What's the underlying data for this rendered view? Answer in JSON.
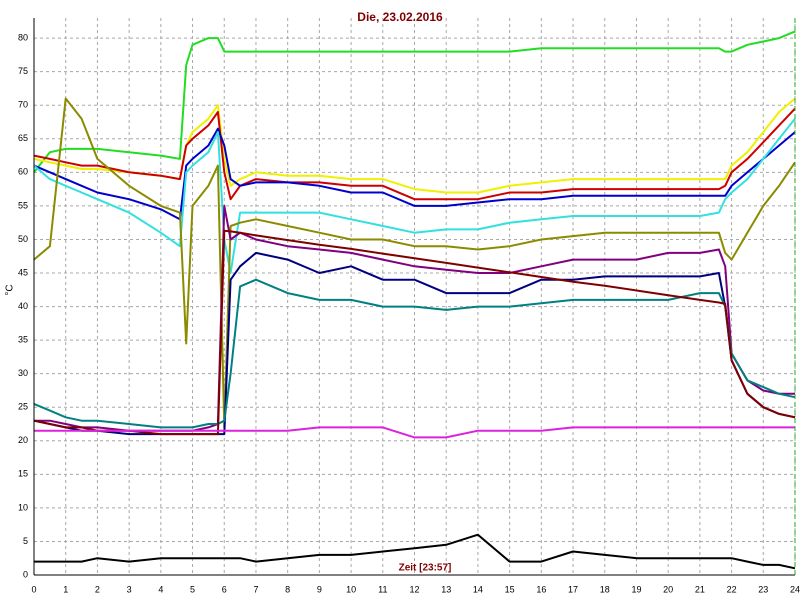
{
  "chart_data": {
    "type": "line",
    "title": "Die, 23.02.2016",
    "ylabel": "°C",
    "xlabel": "Zeit [23:57]",
    "x": [
      0,
      0.5,
      1,
      1.5,
      2,
      3,
      4,
      4.6,
      4.8,
      5,
      5.5,
      5.8,
      6,
      6.2,
      6.5,
      7,
      8,
      9,
      10,
      11,
      12,
      13,
      14,
      15,
      16,
      17,
      18,
      19,
      20,
      21,
      21.6,
      21.8,
      22,
      22.5,
      23,
      23.5,
      24
    ],
    "xlim": [
      0,
      24
    ],
    "xticks": [
      0,
      1,
      2,
      3,
      4,
      5,
      6,
      7,
      8,
      9,
      10,
      11,
      12,
      13,
      14,
      15,
      16,
      17,
      18,
      19,
      20,
      21,
      22,
      23,
      24
    ],
    "ylim": [
      0,
      83
    ],
    "yticks": [
      0,
      5,
      10,
      15,
      20,
      25,
      30,
      35,
      40,
      45,
      50,
      55,
      60,
      65,
      70,
      75,
      80
    ],
    "grid": true,
    "series": [
      {
        "color": "#22dd22",
        "values": [
          60,
          63,
          63.5,
          63.5,
          63.5,
          63,
          62.5,
          62,
          76,
          79,
          80,
          80,
          78,
          78,
          78,
          78,
          78,
          78,
          78,
          78,
          78,
          78,
          78,
          78,
          78.5,
          78.5,
          78.5,
          78.5,
          78.5,
          78.5,
          78.5,
          78,
          78,
          79,
          79.5,
          80,
          81
        ]
      },
      {
        "color": "#f0f000",
        "values": [
          62,
          61.5,
          61,
          60.5,
          60.5,
          60,
          59.5,
          59,
          64,
          66,
          68,
          70,
          62,
          58,
          59,
          60,
          59.5,
          59.5,
          59,
          59,
          57.5,
          57,
          57,
          58,
          58.5,
          59,
          59,
          59,
          59,
          59,
          59,
          59,
          61,
          63,
          66,
          69,
          71
        ]
      },
      {
        "color": "#cc0000",
        "values": [
          62.5,
          62,
          61.5,
          61,
          61,
          60,
          59.5,
          59,
          64,
          65,
          67,
          69,
          60,
          56,
          58,
          59,
          58.5,
          58.5,
          58,
          58,
          56,
          56,
          56,
          57,
          57,
          57.5,
          57.5,
          57.5,
          57.5,
          57.5,
          57.5,
          58,
          60,
          62,
          64.5,
          67,
          69.5
        ]
      },
      {
        "color": "#0000cc",
        "values": [
          61,
          60,
          59,
          58,
          57,
          56,
          54.5,
          53,
          61,
          62,
          64,
          66.5,
          64,
          59,
          58,
          58.5,
          58.5,
          58,
          57,
          57,
          55,
          55,
          55.5,
          56,
          56,
          56.5,
          56.5,
          56.5,
          56.5,
          56.5,
          56.5,
          56.5,
          58,
          60,
          62,
          64,
          66
        ]
      },
      {
        "color": "#33e0e0",
        "values": [
          61,
          59,
          58,
          57,
          56,
          54,
          51,
          49,
          60,
          61,
          63,
          66,
          50,
          45,
          54,
          54,
          54,
          54,
          53,
          52,
          51,
          51.5,
          51.5,
          52.5,
          53,
          53.5,
          53.5,
          53.5,
          53.5,
          53.5,
          54,
          56,
          57,
          59,
          62,
          65,
          68
        ]
      },
      {
        "color": "#8b8b00",
        "values": [
          47,
          49,
          71,
          68,
          62,
          58,
          55,
          54,
          34.5,
          55,
          58,
          61,
          22,
          52,
          52.5,
          53,
          52,
          51,
          50,
          50,
          49,
          49,
          48.5,
          49,
          50,
          50.5,
          51,
          51,
          51,
          51,
          51,
          48,
          47,
          51,
          55,
          58,
          61.5
        ]
      },
      {
        "color": "#800080",
        "values": [
          23,
          23,
          22.5,
          22,
          22,
          21.5,
          21.5,
          21.5,
          21.5,
          21.5,
          22,
          22.5,
          55,
          50,
          51,
          50,
          49,
          48.5,
          48,
          47,
          46,
          45.5,
          45,
          45,
          46,
          47,
          47,
          47,
          48,
          48,
          48.5,
          46,
          33,
          29,
          27.5,
          27,
          27
        ]
      },
      {
        "color": "#000080",
        "values": [
          23,
          22.5,
          22,
          21.5,
          21.5,
          21,
          21,
          21,
          21,
          21,
          21,
          21,
          21,
          44,
          46,
          48,
          47,
          45,
          46,
          44,
          44,
          42,
          42,
          42,
          44,
          44,
          44.5,
          44.5,
          44.5,
          44.5,
          45,
          40,
          32,
          27,
          25,
          24,
          23.5
        ]
      },
      {
        "color": "#008080",
        "values": [
          25.5,
          24.5,
          23.5,
          23,
          23,
          22.5,
          22,
          22,
          22,
          22,
          22.5,
          22.5,
          23,
          30,
          43,
          44,
          42,
          41,
          41,
          40,
          40,
          39.5,
          40,
          40,
          40.5,
          41,
          41,
          41,
          41,
          42,
          42,
          40,
          33,
          29,
          28,
          27,
          26.5
        ]
      },
      {
        "color": "#800000",
        "values": [
          23,
          22.5,
          22,
          22,
          21.5,
          21.5,
          21,
          21,
          21,
          21,
          21,
          21,
          51.3,
          51.2,
          51,
          50.6,
          49.9,
          49.2,
          48.6,
          47.9,
          47.2,
          46.5,
          45.8,
          45.1,
          44.4,
          43.7,
          43.1,
          42.4,
          41.7,
          41,
          40.6,
          40.4,
          32,
          27,
          25,
          24,
          23.5
        ]
      },
      {
        "color": "#dd22dd",
        "values": [
          21.5,
          21.5,
          21.5,
          21.5,
          21.5,
          21.5,
          21.5,
          21.5,
          21.5,
          21.5,
          21.5,
          21.5,
          21.5,
          21.5,
          21.5,
          21.5,
          21.5,
          22,
          22,
          22,
          20.5,
          20.5,
          21.5,
          21.5,
          21.5,
          22,
          22,
          22,
          22,
          22,
          22,
          22,
          22,
          22,
          22,
          22,
          22
        ]
      },
      {
        "color": "#000000",
        "values": [
          2,
          2,
          2,
          2,
          2.5,
          2,
          2.5,
          2.5,
          2.5,
          2.5,
          2.5,
          2.5,
          2.5,
          2.5,
          2.5,
          2,
          2.5,
          3,
          3,
          3.5,
          4,
          4.5,
          6,
          2,
          2,
          3.5,
          3,
          2.5,
          2.5,
          2.5,
          2.5,
          2.5,
          2.5,
          2,
          1.5,
          1.5,
          1
        ]
      }
    ]
  }
}
